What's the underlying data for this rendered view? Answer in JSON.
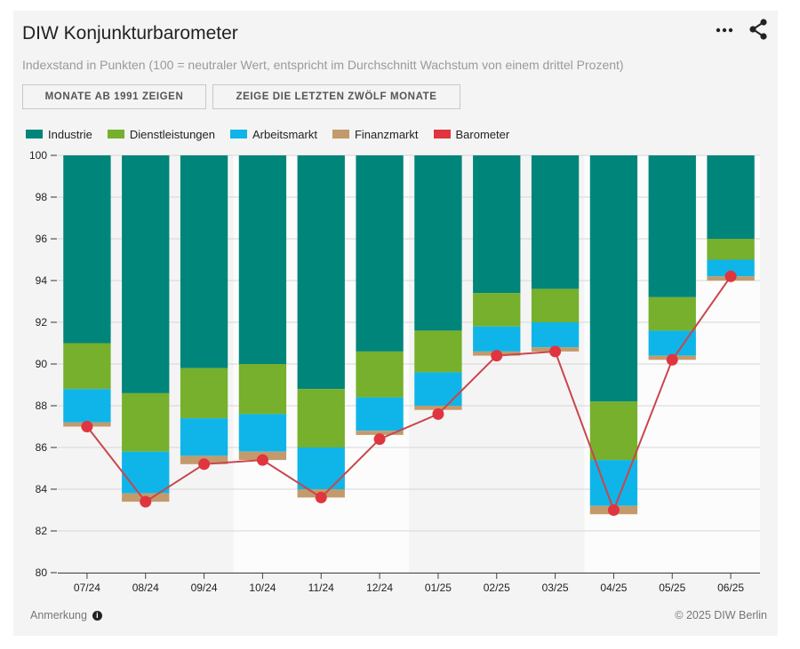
{
  "header": {
    "title": "DIW Konjunkturbarometer",
    "subtitle": "Indexstand in Punkten (100 = neutraler Wert, entspricht im Durchschnitt Wachstum von einem drittel Prozent)"
  },
  "toolbar": {
    "button_since_1991": "MONATE AB 1991 ZEIGEN",
    "button_last_twelve": "ZEIGE DIE LETZTEN ZWÖLF MONATE",
    "menu_icon": "more-dots-icon",
    "share_icon": "share-icon"
  },
  "footer": {
    "note_label": "Anmerkung",
    "copyright": "© 2025 DIW Berlin"
  },
  "chart_data": {
    "type": "bar",
    "stacking": "downward-from-100",
    "categories": [
      "07/24",
      "08/24",
      "09/24",
      "10/24",
      "11/24",
      "12/24",
      "01/25",
      "02/25",
      "03/25",
      "04/25",
      "05/25",
      "06/25"
    ],
    "ylim": [
      80,
      100
    ],
    "yticks": [
      80,
      82,
      84,
      86,
      88,
      90,
      92,
      94,
      96,
      98,
      100
    ],
    "grid": true,
    "legend_position": "top-left",
    "series": [
      {
        "name": "Industrie",
        "color": "#00857a",
        "kind": "bar",
        "values": [
          -9.0,
          -11.4,
          -10.2,
          -10.0,
          -11.2,
          -9.4,
          -8.4,
          -6.6,
          -6.4,
          -11.8,
          -6.8,
          -4.0
        ]
      },
      {
        "name": "Dienstleistungen",
        "color": "#76b02c",
        "kind": "bar",
        "values": [
          -2.2,
          -2.8,
          -2.4,
          -2.4,
          -2.8,
          -2.2,
          -2.0,
          -1.6,
          -1.6,
          -2.8,
          -1.6,
          -1.0
        ]
      },
      {
        "name": "Arbeitsmarkt",
        "color": "#0fb5e8",
        "kind": "bar",
        "values": [
          -1.6,
          -2.0,
          -1.8,
          -1.8,
          -2.0,
          -1.6,
          -1.6,
          -1.2,
          -1.2,
          -2.2,
          -1.2,
          -0.8
        ]
      },
      {
        "name": "Finanzmarkt",
        "color": "#c39a6b",
        "kind": "bar",
        "values": [
          -0.2,
          -0.4,
          -0.4,
          -0.4,
          -0.4,
          -0.2,
          -0.2,
          -0.2,
          -0.2,
          -0.4,
          -0.2,
          -0.2
        ]
      },
      {
        "name": "Barometer",
        "color": "#e0353f",
        "kind": "line",
        "values": [
          87.0,
          83.4,
          85.2,
          85.4,
          83.6,
          86.4,
          87.6,
          90.4,
          90.6,
          83.0,
          90.2,
          94.2
        ]
      }
    ]
  }
}
